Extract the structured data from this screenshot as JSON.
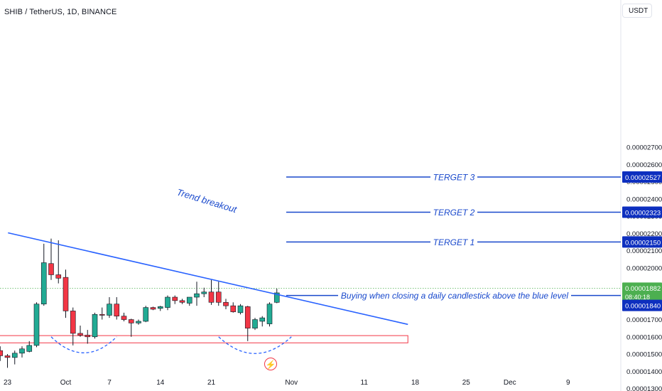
{
  "header": {
    "symbol_line": "SHIB / TetherUS, 1D, BINANCE"
  },
  "currency_button": "USDT",
  "colors": {
    "up": "#22ab94",
    "down": "#f23645",
    "trend": "#2962ff",
    "target_line": "#1848cc",
    "support": "#f23645",
    "price_badge": "#4caf50",
    "level_badge": "#0d2fbf",
    "axis_text": "#131722"
  },
  "chart_data": {
    "type": "candlestick",
    "ylim": [
      1.25e-05,
      2.89e-05
    ],
    "y_ticks": [
      "0.00002700",
      "0.00002600",
      "0.00002500",
      "0.00002400",
      "0.00002300",
      "0.00002200",
      "0.00002100",
      "0.00002000",
      "0.00001900",
      "0.00001800",
      "0.00001700",
      "0.00001600",
      "0.00001500",
      "0.00001400",
      "0.00001300"
    ],
    "x_ticks": [
      {
        "label": "23",
        "day": -8
      },
      {
        "label": "Oct",
        "day": 0
      },
      {
        "label": "7",
        "day": 6
      },
      {
        "label": "14",
        "day": 13
      },
      {
        "label": "21",
        "day": 20
      },
      {
        "label": "Nov",
        "day": 31
      },
      {
        "label": "11",
        "day": 41
      },
      {
        "label": "18",
        "day": 48
      },
      {
        "label": "25",
        "day": 55
      },
      {
        "label": "Dec",
        "day": 61
      },
      {
        "label": "9",
        "day": 69
      }
    ],
    "candles": [
      {
        "day": -9,
        "o": 1.52,
        "h": 1.545,
        "l": 1.46,
        "c": 1.49
      },
      {
        "day": -8,
        "o": 1.49,
        "h": 1.5,
        "l": 1.42,
        "c": 1.48
      },
      {
        "day": -7,
        "o": 1.48,
        "h": 1.52,
        "l": 1.44,
        "c": 1.505
      },
      {
        "day": -6,
        "o": 1.505,
        "h": 1.545,
        "l": 1.48,
        "c": 1.53
      },
      {
        "day": -5,
        "o": 1.515,
        "h": 1.575,
        "l": 1.51,
        "c": 1.55
      },
      {
        "day": -4,
        "o": 1.55,
        "h": 1.8,
        "l": 1.54,
        "c": 1.79
      },
      {
        "day": -3,
        "o": 1.79,
        "h": 2.14,
        "l": 1.78,
        "c": 2.03
      },
      {
        "day": -2,
        "o": 2.025,
        "h": 2.17,
        "l": 1.93,
        "c": 1.96
      },
      {
        "day": -1,
        "o": 1.96,
        "h": 2.16,
        "l": 1.91,
        "c": 1.94
      },
      {
        "day": 0,
        "o": 1.945,
        "h": 1.99,
        "l": 1.71,
        "c": 1.75
      },
      {
        "day": 1,
        "o": 1.75,
        "h": 1.77,
        "l": 1.55,
        "c": 1.62
      },
      {
        "day": 2,
        "o": 1.62,
        "h": 1.665,
        "l": 1.6,
        "c": 1.61
      },
      {
        "day": 3,
        "o": 1.61,
        "h": 1.64,
        "l": 1.56,
        "c": 1.6
      },
      {
        "day": 4,
        "o": 1.6,
        "h": 1.74,
        "l": 1.59,
        "c": 1.73
      },
      {
        "day": 5,
        "o": 1.73,
        "h": 1.77,
        "l": 1.7,
        "c": 1.725
      },
      {
        "day": 6,
        "o": 1.725,
        "h": 1.83,
        "l": 1.71,
        "c": 1.79
      },
      {
        "day": 7,
        "o": 1.79,
        "h": 1.83,
        "l": 1.7,
        "c": 1.72
      },
      {
        "day": 8,
        "o": 1.72,
        "h": 1.74,
        "l": 1.69,
        "c": 1.7
      },
      {
        "day": 9,
        "o": 1.7,
        "h": 1.705,
        "l": 1.6,
        "c": 1.68
      },
      {
        "day": 10,
        "o": 1.68,
        "h": 1.7,
        "l": 1.67,
        "c": 1.69
      },
      {
        "day": 11,
        "o": 1.69,
        "h": 1.78,
        "l": 1.685,
        "c": 1.77
      },
      {
        "day": 12,
        "o": 1.77,
        "h": 1.775,
        "l": 1.755,
        "c": 1.76
      },
      {
        "day": 13,
        "o": 1.765,
        "h": 1.78,
        "l": 1.75,
        "c": 1.775
      },
      {
        "day": 14,
        "o": 1.77,
        "h": 1.84,
        "l": 1.755,
        "c": 1.83
      },
      {
        "day": 15,
        "o": 1.83,
        "h": 1.84,
        "l": 1.79,
        "c": 1.81
      },
      {
        "day": 16,
        "o": 1.81,
        "h": 1.82,
        "l": 1.79,
        "c": 1.8
      },
      {
        "day": 17,
        "o": 1.795,
        "h": 1.83,
        "l": 1.78,
        "c": 1.83
      },
      {
        "day": 18,
        "o": 1.83,
        "h": 1.92,
        "l": 1.78,
        "c": 1.85
      },
      {
        "day": 19,
        "o": 1.85,
        "h": 1.885,
        "l": 1.83,
        "c": 1.86
      },
      {
        "day": 20,
        "o": 1.86,
        "h": 1.93,
        "l": 1.785,
        "c": 1.8
      },
      {
        "day": 21,
        "o": 1.86,
        "h": 1.92,
        "l": 1.78,
        "c": 1.8
      },
      {
        "day": 22,
        "o": 1.8,
        "h": 1.82,
        "l": 1.76,
        "c": 1.78
      },
      {
        "day": 23,
        "o": 1.78,
        "h": 1.8,
        "l": 1.74,
        "c": 1.745
      },
      {
        "day": 24,
        "o": 1.74,
        "h": 1.79,
        "l": 1.73,
        "c": 1.78
      },
      {
        "day": 25,
        "o": 1.775,
        "h": 1.78,
        "l": 1.575,
        "c": 1.65
      },
      {
        "day": 26,
        "o": 1.65,
        "h": 1.71,
        "l": 1.64,
        "c": 1.7
      },
      {
        "day": 27,
        "o": 1.69,
        "h": 1.72,
        "l": 1.66,
        "c": 1.71
      },
      {
        "day": 28,
        "o": 1.675,
        "h": 1.8,
        "l": 1.66,
        "c": 1.79
      },
      {
        "day": 29,
        "o": 1.8,
        "h": 1.88,
        "l": 1.795,
        "c": 1.855
      }
    ],
    "trendline": {
      "from": {
        "day": -5,
        "value": 2.175
      },
      "to": {
        "day": 47,
        "value": 1.672
      }
    },
    "trend_label": "Trend breakout",
    "support_zone": {
      "from_day": -9,
      "to_day": 47,
      "top": 1.607,
      "bottom": 1.565
    },
    "dashed_arcs": [
      {
        "from_day": -2,
        "to_day": 7,
        "top": 1.6,
        "bottom": 1.507
      },
      {
        "from_day": 21,
        "to_day": 31,
        "top": 1.6,
        "bottom": 1.503
      }
    ],
    "current_price_line": 1.882,
    "annotations": {
      "targets": [
        {
          "label": "TERGET 3",
          "value": 2.527,
          "badge": "0.00002527"
        },
        {
          "label": "TERGET 2",
          "value": 2.323,
          "badge": "0.00002323"
        },
        {
          "label": "TERGET 1",
          "value": 2.15,
          "badge": "0.00002150"
        }
      ],
      "buy_level": {
        "label": "Buying when closing a daily candlestick above the blue level",
        "value": 1.84,
        "badge": "0.00001840"
      }
    },
    "current_price_badge": {
      "price": "0.00001882",
      "countdown": "08:40:18"
    }
  },
  "icons": {
    "bottom_center": "lightning-bolt-icon",
    "tradingview_logo": "tradingview-logo-icon"
  }
}
